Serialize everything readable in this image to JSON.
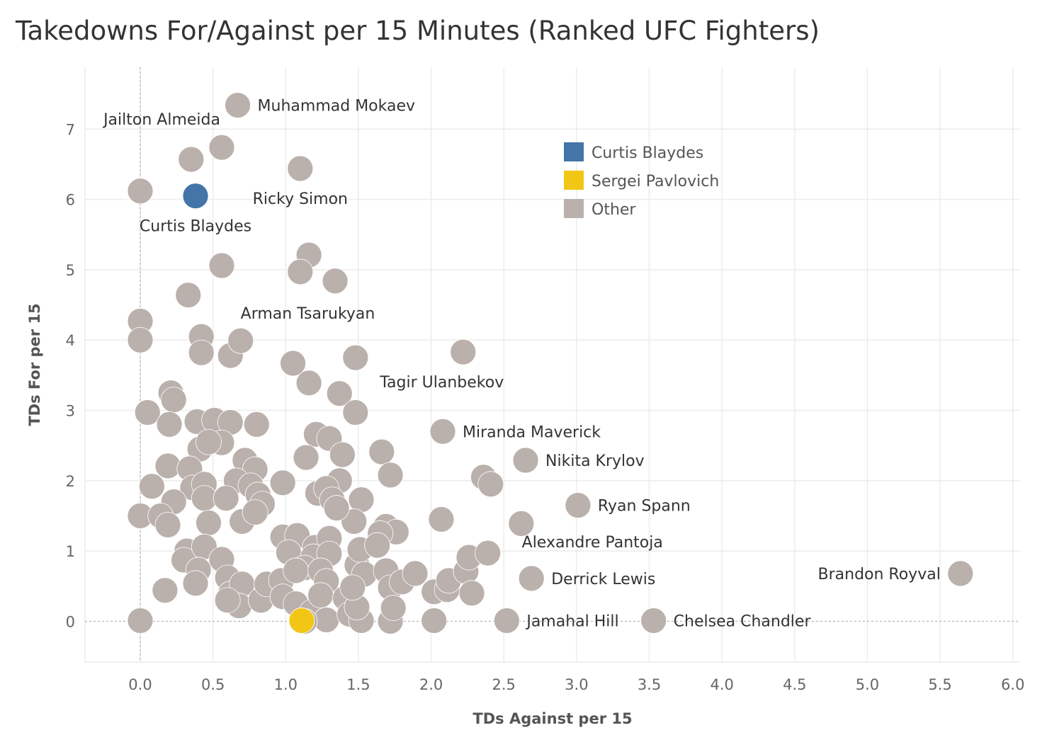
{
  "title": "Takedowns For/Against per 15 Minutes (Ranked UFC Fighters)",
  "colors": {
    "Curtis Blaydes": "#4375a8",
    "Sergei Pavlovich": "#f2c615",
    "Other": "#bab0ac",
    "grid": "#ececec",
    "zero_line": "#a8a8a8",
    "axis_text": "#666666",
    "label_text": "#333333"
  },
  "chart_data": {
    "type": "scatter",
    "title": "Takedowns For/Against per 15 Minutes (Ranked UFC Fighters)",
    "xlabel": "TDs Against per 15",
    "ylabel": "TDs For per 15",
    "xlim": [
      -0.38,
      6.05
    ],
    "ylim": [
      -0.58,
      7.88
    ],
    "xticks": [
      "0.0",
      "0.5",
      "1.0",
      "1.5",
      "2.0",
      "2.5",
      "3.0",
      "3.5",
      "4.0",
      "4.5",
      "5.0",
      "5.5",
      "6.0"
    ],
    "xtick_values": [
      0.0,
      0.5,
      1.0,
      1.5,
      2.0,
      2.5,
      3.0,
      3.5,
      4.0,
      4.5,
      5.0,
      5.5,
      6.0
    ],
    "yticks": [
      "0",
      "1",
      "2",
      "3",
      "4",
      "5",
      "6",
      "7"
    ],
    "ytick_values": [
      0,
      1,
      2,
      3,
      4,
      5,
      6,
      7
    ],
    "grid": true,
    "legend": {
      "position": "top-right",
      "entries": [
        "Curtis Blaydes",
        "Sergei Pavlovich",
        "Other"
      ]
    },
    "labeled_points": [
      {
        "name": "Muhammad Mokaev",
        "x": 0.67,
        "y": 7.34,
        "category": "Other",
        "label_side": "right"
      },
      {
        "name": "Jailton Almeida",
        "x": 0.56,
        "y": 6.74,
        "category": "Other",
        "label_side": "above-left"
      },
      {
        "name": "Ricky Simon",
        "x": 1.1,
        "y": 6.44,
        "category": "Other",
        "label_side": "below-left"
      },
      {
        "name": "Curtis Blaydes",
        "x": 0.38,
        "y": 6.05,
        "category": "Curtis Blaydes",
        "label_side": "below"
      },
      {
        "name": "Arman Tsarukyan",
        "x": 0.69,
        "y": 3.99,
        "category": "Other",
        "label_side": "above-right"
      },
      {
        "name": "Tagir Ulanbekov",
        "x": 2.22,
        "y": 3.83,
        "category": "Other",
        "label_side": "below-left"
      },
      {
        "name": "Miranda Maverick",
        "x": 2.08,
        "y": 2.7,
        "category": "Other",
        "label_side": "right"
      },
      {
        "name": "Nikita Krylov",
        "x": 2.65,
        "y": 2.29,
        "category": "Other",
        "label_side": "right"
      },
      {
        "name": "Ryan Spann",
        "x": 3.01,
        "y": 1.65,
        "category": "Other",
        "label_side": "right"
      },
      {
        "name": "Alexandre Pantoja",
        "x": 2.39,
        "y": 0.97,
        "category": "Other",
        "label_side": "below-right"
      },
      {
        "name": "Derrick Lewis",
        "x": 2.69,
        "y": 0.61,
        "category": "Other",
        "label_side": "right"
      },
      {
        "name": "Brandon Royval",
        "x": 5.64,
        "y": 0.68,
        "category": "Other",
        "label_side": "left"
      },
      {
        "name": "Jamahal Hill",
        "x": 2.52,
        "y": 0.01,
        "category": "Other",
        "label_side": "right"
      },
      {
        "name": "Chelsea Chandler",
        "x": 3.53,
        "y": 0.01,
        "category": "Other",
        "label_side": "right"
      }
    ],
    "highlight_points": [
      {
        "name": "Sergei Pavlovich",
        "x": 1.11,
        "y": 0.01,
        "category": "Sergei Pavlovich"
      }
    ],
    "points": [
      [
        0.35,
        6.57
      ],
      [
        0.0,
        6.12
      ],
      [
        0.56,
        5.06
      ],
      [
        1.16,
        5.21
      ],
      [
        1.1,
        4.97
      ],
      [
        1.34,
        4.84
      ],
      [
        0.33,
        4.64
      ],
      [
        0.0,
        4.27
      ],
      [
        0.0,
        4.0
      ],
      [
        0.42,
        4.05
      ],
      [
        0.42,
        3.82
      ],
      [
        0.62,
        3.78
      ],
      [
        1.05,
        3.67
      ],
      [
        1.16,
        3.39
      ],
      [
        1.48,
        3.75
      ],
      [
        1.37,
        3.24
      ],
      [
        1.48,
        2.97
      ],
      [
        0.21,
        3.25
      ],
      [
        0.23,
        3.15
      ],
      [
        0.05,
        2.97
      ],
      [
        0.2,
        2.8
      ],
      [
        0.39,
        2.84
      ],
      [
        0.51,
        2.86
      ],
      [
        0.62,
        2.83
      ],
      [
        0.8,
        2.8
      ],
      [
        0.56,
        2.54
      ],
      [
        0.41,
        2.45
      ],
      [
        0.47,
        2.55
      ],
      [
        0.19,
        2.21
      ],
      [
        0.34,
        2.17
      ],
      [
        0.72,
        2.29
      ],
      [
        0.79,
        2.16
      ],
      [
        1.21,
        2.66
      ],
      [
        1.3,
        2.6
      ],
      [
        1.39,
        2.37
      ],
      [
        1.66,
        2.41
      ],
      [
        1.72,
        2.08
      ],
      [
        1.14,
        2.33
      ],
      [
        0.08,
        1.92
      ],
      [
        0.36,
        1.9
      ],
      [
        0.44,
        1.95
      ],
      [
        0.66,
        2.0
      ],
      [
        0.76,
        1.93
      ],
      [
        0.98,
        1.97
      ],
      [
        1.37,
        2.0
      ],
      [
        1.22,
        1.82
      ],
      [
        1.28,
        1.89
      ],
      [
        0.23,
        1.7
      ],
      [
        0.44,
        1.75
      ],
      [
        0.59,
        1.75
      ],
      [
        0.81,
        1.8
      ],
      [
        0.84,
        1.67
      ],
      [
        1.32,
        1.73
      ],
      [
        1.52,
        1.73
      ],
      [
        0.0,
        1.5
      ],
      [
        0.14,
        1.5
      ],
      [
        0.19,
        1.37
      ],
      [
        0.47,
        1.4
      ],
      [
        0.7,
        1.42
      ],
      [
        0.79,
        1.55
      ],
      [
        1.47,
        1.42
      ],
      [
        1.35,
        1.61
      ],
      [
        1.69,
        1.35
      ],
      [
        1.76,
        1.27
      ],
      [
        1.65,
        1.25
      ],
      [
        2.07,
        1.45
      ],
      [
        2.62,
        1.39
      ],
      [
        2.36,
        2.05
      ],
      [
        2.41,
        1.95
      ],
      [
        0.32,
        1.0
      ],
      [
        0.3,
        0.87
      ],
      [
        0.44,
        1.06
      ],
      [
        0.4,
        0.73
      ],
      [
        0.38,
        0.54
      ],
      [
        0.56,
        0.88
      ],
      [
        0.17,
        0.44
      ],
      [
        0.6,
        0.62
      ],
      [
        0.62,
        0.39
      ],
      [
        0.7,
        0.53
      ],
      [
        0.68,
        0.22
      ],
      [
        0.6,
        0.3
      ],
      [
        0.83,
        0.3
      ],
      [
        0.87,
        0.53
      ],
      [
        0.98,
        1.2
      ],
      [
        1.08,
        1.22
      ],
      [
        1.02,
        0.98
      ],
      [
        1.2,
        1.05
      ],
      [
        1.3,
        1.18
      ],
      [
        1.19,
        0.92
      ],
      [
        1.3,
        0.96
      ],
      [
        1.13,
        0.76
      ],
      [
        0.97,
        0.58
      ],
      [
        1.07,
        0.72
      ],
      [
        1.24,
        0.72
      ],
      [
        1.28,
        0.57
      ],
      [
        0.98,
        0.35
      ],
      [
        1.07,
        0.25
      ],
      [
        1.18,
        0.13
      ],
      [
        1.24,
        0.37
      ],
      [
        1.28,
        0.02
      ],
      [
        1.13,
        0.0
      ],
      [
        1.41,
        0.33
      ],
      [
        1.44,
        0.1
      ],
      [
        1.49,
        0.8
      ],
      [
        1.51,
        1.02
      ],
      [
        1.54,
        0.67
      ],
      [
        1.52,
        0.01
      ],
      [
        1.49,
        0.2
      ],
      [
        1.46,
        0.48
      ],
      [
        1.63,
        1.08
      ],
      [
        1.69,
        0.72
      ],
      [
        1.72,
        0.48
      ],
      [
        1.72,
        0.0
      ],
      [
        1.74,
        0.19
      ],
      [
        1.8,
        0.56
      ],
      [
        1.89,
        0.68
      ],
      [
        2.02,
        0.42
      ],
      [
        2.11,
        0.45
      ],
      [
        2.12,
        0.58
      ],
      [
        2.24,
        0.71
      ],
      [
        2.26,
        0.91
      ],
      [
        2.28,
        0.4
      ],
      [
        2.02,
        0.01
      ],
      [
        0.0,
        0.01
      ]
    ]
  }
}
